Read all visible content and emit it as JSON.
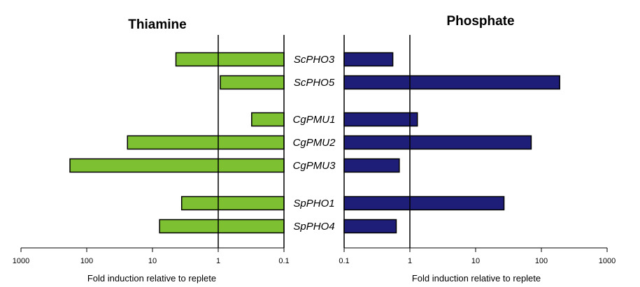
{
  "chart_data": [
    {
      "type": "bar",
      "title": "Thiamine",
      "xlabel": "Fold induction relative to replete",
      "x_scale": "log",
      "x_direction": "reversed",
      "xlim": [
        1000,
        0.1
      ],
      "x_ticks": [
        "1000",
        "100",
        "10",
        "1",
        "0.1"
      ],
      "categories": [
        "ScPHO3",
        "ScPHO5",
        "CgPMU1",
        "CgPMU2",
        "CgPMU3",
        "SpPHO1",
        "SpPHO4"
      ],
      "values": [
        4.4,
        0.93,
        0.31,
        24,
        180,
        3.6,
        7.8
      ],
      "color": "#7dc031"
    },
    {
      "type": "bar",
      "title": "Phosphate",
      "xlabel": "Fold induction relative to replete",
      "x_scale": "log",
      "xlim": [
        0.1,
        1000
      ],
      "x_ticks": [
        "0.1",
        "1",
        "10",
        "100",
        "1000"
      ],
      "categories": [
        "ScPHO3",
        "ScPHO5",
        "CgPMU1",
        "CgPMU2",
        "CgPMU3",
        "SpPHO1",
        "SpPHO4"
      ],
      "values": [
        0.55,
        190,
        1.3,
        70,
        0.69,
        27,
        0.62
      ],
      "color": "#1e1e78"
    }
  ]
}
